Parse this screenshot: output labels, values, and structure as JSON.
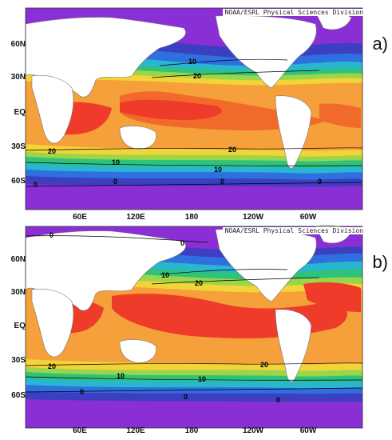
{
  "panels": [
    {
      "id": "a",
      "label": "a)",
      "credit": "NOAA/ESRL Physical Sciences Division",
      "lat_labels": [
        "60N",
        "30N",
        "EQ",
        "30S",
        "60S"
      ],
      "contour_labels": [
        "10",
        "20",
        "20",
        "20",
        "10",
        "10",
        "0",
        "0",
        "0",
        "0"
      ]
    },
    {
      "id": "b",
      "label": "b)",
      "credit": "NOAA/ESRL Physical Sciences Division",
      "lat_labels": [
        "60N",
        "30N",
        "EQ",
        "30S",
        "60S"
      ],
      "contour_labels": [
        "0",
        "0",
        "10",
        "20",
        "20",
        "20",
        "10",
        "10",
        "0",
        "0",
        "0"
      ]
    }
  ],
  "lon_labels": [
    "60E",
    "120E",
    "180",
    "120W",
    "60W"
  ],
  "colors": {
    "warm": "#ef3b2a",
    "warmish": "#f26a2a",
    "orange": "#f5a03a",
    "yellow": "#f3d438",
    "lime": "#9bd54a",
    "green": "#2fc27a",
    "cyan": "#29b6cf",
    "blue": "#2f6fe0",
    "navy": "#3b3fc0",
    "purple": "#8a2fd6",
    "land": "#ffffff"
  }
}
